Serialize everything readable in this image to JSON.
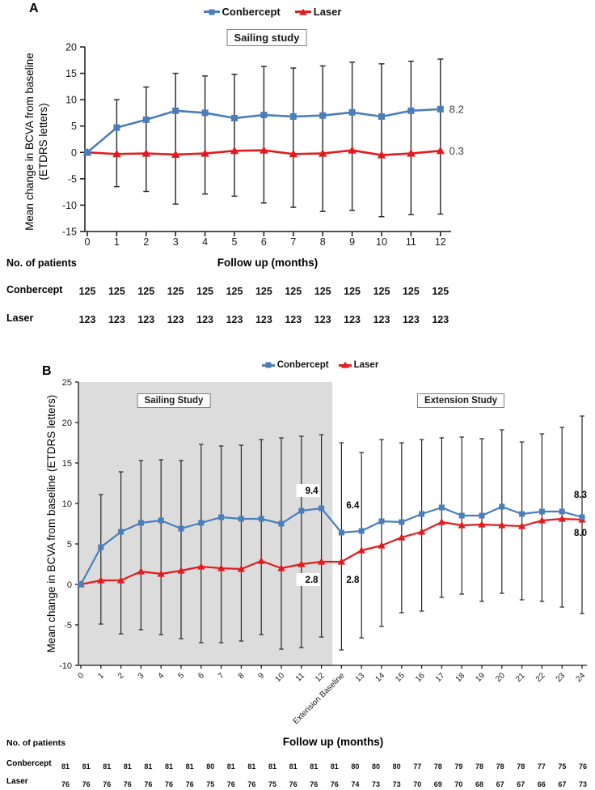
{
  "chart_data": [
    {
      "type": "line",
      "panel_label": "A",
      "title_box": "Sailing study",
      "ylabel_line1": "Mean change in BCVA from baseline",
      "ylabel_line2": "(ETDRS letters)",
      "xlabel": "Follow up (months)",
      "ylim": [
        -15,
        20
      ],
      "ytick_step": 5,
      "x": [
        "0",
        "1",
        "2",
        "3",
        "4",
        "5",
        "6",
        "7",
        "8",
        "9",
        "10",
        "11",
        "12"
      ],
      "series": [
        {
          "name": "Conbercept",
          "color": "#4a7ebb",
          "marker": "square",
          "values": [
            0,
            4.7,
            6.2,
            7.9,
            7.5,
            6.5,
            7.1,
            6.8,
            7.0,
            7.6,
            6.8,
            7.9,
            8.2
          ],
          "end_label": "8.2"
        },
        {
          "name": "Laser",
          "color": "#e31b1e",
          "marker": "triangle",
          "values": [
            0,
            -0.3,
            -0.2,
            -0.4,
            -0.2,
            0.3,
            0.4,
            -0.3,
            -0.2,
            0.4,
            -0.5,
            -0.2,
            0.3
          ],
          "end_label": "0.3"
        }
      ],
      "error_upper": [
        null,
        10.0,
        12.4,
        15.0,
        14.5,
        14.8,
        16.3,
        16.0,
        16.4,
        17.1,
        16.8,
        17.3,
        17.7
      ],
      "error_lower": [
        null,
        -6.5,
        -7.4,
        -9.8,
        -7.9,
        -8.3,
        -9.6,
        -10.4,
        -11.2,
        -11.0,
        -12.2,
        -11.8,
        -11.7
      ],
      "patients_label": "No. of patients",
      "patients": [
        {
          "name": "Conbercept",
          "counts": [
            "125",
            "125",
            "125",
            "125",
            "125",
            "125",
            "125",
            "125",
            "125",
            "125",
            "125",
            "125",
            "125"
          ]
        },
        {
          "name": "Laser",
          "counts": [
            "123",
            "123",
            "123",
            "123",
            "123",
            "123",
            "123",
            "123",
            "123",
            "123",
            "123",
            "123",
            "123"
          ]
        }
      ]
    },
    {
      "type": "line",
      "panel_label": "B",
      "region_boxes": [
        "Sailing Study",
        "Extension Study"
      ],
      "ylabel_line1": "Mean change in BCVA from baseline (ETDRS letters)",
      "xlabel": "Follow up (months)",
      "ylim": [
        -10,
        25
      ],
      "ytick_step": 5,
      "x": [
        "0",
        "1",
        "2",
        "3",
        "4",
        "5",
        "6",
        "7",
        "8",
        "9",
        "10",
        "11",
        "12",
        "Extension Baseline",
        "13",
        "14",
        "15",
        "16",
        "17",
        "18",
        "19",
        "20",
        "21",
        "22",
        "23",
        "24"
      ],
      "shaded_region": {
        "from": 0,
        "to": 12.55,
        "color": "#dcdcdc"
      },
      "series": [
        {
          "name": "Conbercept",
          "color": "#4a7ebb",
          "marker": "square",
          "values": [
            0,
            4.6,
            6.5,
            7.6,
            7.9,
            6.9,
            7.6,
            8.3,
            8.1,
            8.1,
            7.5,
            9.1,
            9.4,
            6.4,
            6.6,
            7.8,
            7.7,
            8.7,
            9.5,
            8.5,
            8.5,
            9.6,
            8.7,
            9.0,
            9.0,
            8.3
          ]
        },
        {
          "name": "Laser",
          "color": "#e31b1e",
          "marker": "triangle",
          "values": [
            0,
            0.5,
            0.5,
            1.6,
            1.3,
            1.7,
            2.2,
            2.0,
            1.9,
            2.9,
            2.0,
            2.5,
            2.8,
            2.8,
            4.2,
            4.8,
            5.8,
            6.5,
            7.7,
            7.3,
            7.4,
            7.3,
            7.2,
            7.9,
            8.1,
            8.0
          ]
        }
      ],
      "error_upper": [
        null,
        11.1,
        13.9,
        15.3,
        15.4,
        15.3,
        17.3,
        17.1,
        17.2,
        17.9,
        18.1,
        18.3,
        18.5,
        17.5,
        16.3,
        17.9,
        17.5,
        17.9,
        18.1,
        18.2,
        18.0,
        19.1,
        17.6,
        18.6,
        19.4,
        20.8
      ],
      "error_lower": [
        null,
        -4.9,
        -6.1,
        -5.6,
        -6.2,
        -6.7,
        -7.2,
        -7.2,
        -7.0,
        -6.2,
        -8.0,
        -7.8,
        -6.5,
        -8.1,
        -6.6,
        -5.2,
        -3.5,
        -3.3,
        -1.6,
        -1.2,
        -2.1,
        -1.1,
        -1.9,
        -2.1,
        -2.8,
        -3.6
      ],
      "annotations": [
        {
          "text": "9.4",
          "point": 12,
          "series": 0,
          "side": "above-left",
          "boxed": true
        },
        {
          "text": "6.4",
          "point": 13,
          "series": 0,
          "side": "above-right"
        },
        {
          "text": "2.8",
          "point": 12,
          "series": 1,
          "side": "below-left",
          "boxed": true
        },
        {
          "text": "2.8",
          "point": 13,
          "series": 1,
          "side": "below-right"
        },
        {
          "text": "8.3",
          "point": 25,
          "series": 0,
          "side": "above-end"
        },
        {
          "text": "8.0",
          "point": 25,
          "series": 1,
          "side": "below-end"
        }
      ],
      "patients_label": "No. of patients",
      "patients": [
        {
          "name": "Conbercept",
          "counts": [
            "81",
            "81",
            "81",
            "81",
            "81",
            "81",
            "81",
            "80",
            "81",
            "81",
            "81",
            "81",
            "81",
            "81",
            "80",
            "80",
            "80",
            "77",
            "78",
            "79",
            "78",
            "78",
            "78",
            "77",
            "75",
            "76"
          ]
        },
        {
          "name": "Laser",
          "counts": [
            "76",
            "76",
            "76",
            "76",
            "76",
            "76",
            "76",
            "75",
            "76",
            "76",
            "75",
            "76",
            "76",
            "76",
            "74",
            "73",
            "73",
            "70",
            "69",
            "70",
            "68",
            "67",
            "67",
            "66",
            "67",
            "73"
          ]
        }
      ]
    }
  ]
}
